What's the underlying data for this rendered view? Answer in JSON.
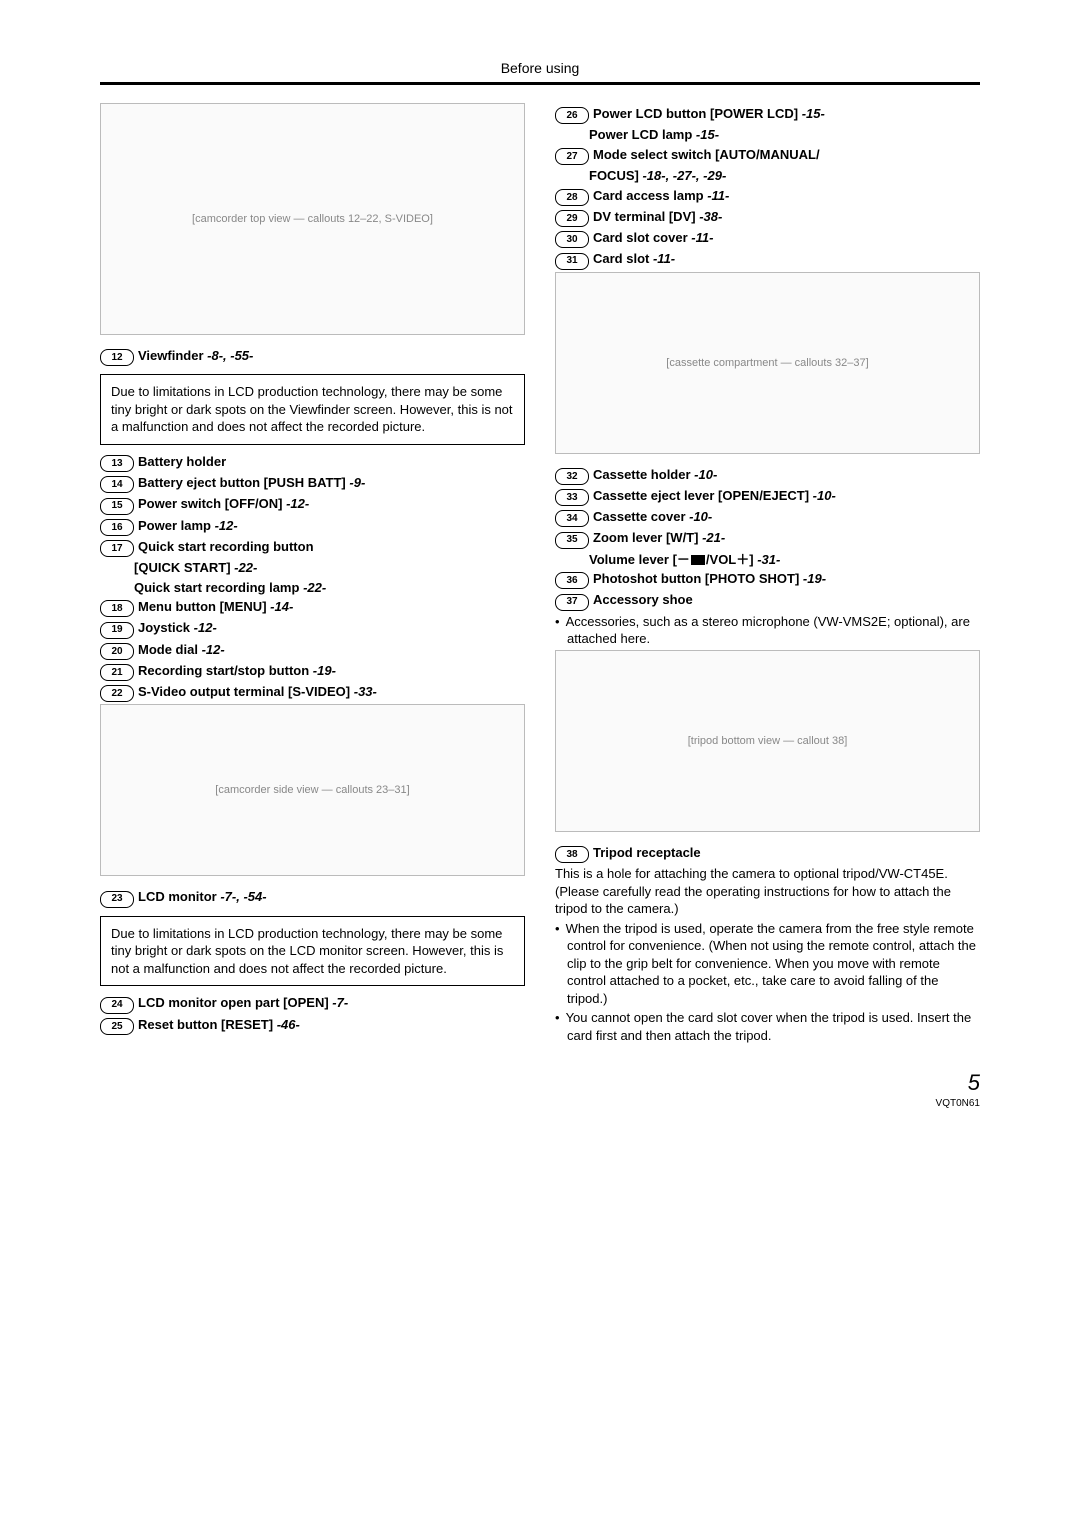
{
  "header": "Before using",
  "left": {
    "diagram1_label": "[camcorder top view — callouts 12–22, S-VIDEO]",
    "i12": {
      "n": "12",
      "name": "Viewfinder",
      "refs": "-8-, -55-"
    },
    "note1": "Due to limitations in LCD production technology, there may be some tiny bright or dark spots on the Viewfinder screen. However, this is not a malfunction and does not affect the recorded picture.",
    "i13": {
      "n": "13",
      "name": "Battery holder"
    },
    "i14": {
      "n": "14",
      "name": "Battery eject button [PUSH BATT]",
      "refs": "-9-"
    },
    "i15": {
      "n": "15",
      "name": "Power switch [OFF/ON]",
      "refs": "-12-"
    },
    "i16": {
      "n": "16",
      "name": "Power lamp",
      "refs": "-12-"
    },
    "i17a": {
      "n": "17",
      "name": "Quick start recording button"
    },
    "i17b": "[QUICK START]",
    "i17b_ref": "-22-",
    "i17c": "Quick start recording lamp",
    "i17c_ref": "-22-",
    "i18": {
      "n": "18",
      "name": "Menu button [MENU]",
      "refs": "-14-"
    },
    "i19": {
      "n": "19",
      "name": "Joystick",
      "refs": "-12-"
    },
    "i20": {
      "n": "20",
      "name": "Mode dial",
      "refs": "-12-"
    },
    "i21": {
      "n": "21",
      "name": "Recording start/stop button",
      "refs": "-19-"
    },
    "i22": {
      "n": "22",
      "name": "S-Video output terminal [S-VIDEO]",
      "refs": "-33-"
    },
    "diagram2_label": "[camcorder side view — callouts 23–31]",
    "i23": {
      "n": "23",
      "name": "LCD monitor",
      "refs": "-7-, -54-"
    },
    "note2": "Due to limitations in LCD production technology, there may be some tiny bright or dark spots on the LCD monitor screen. However, this is not a malfunction and does not affect the recorded picture.",
    "i24": {
      "n": "24",
      "name": "LCD monitor open part [OPEN]",
      "refs": "-7-"
    },
    "i25": {
      "n": "25",
      "name": "Reset button [RESET]",
      "refs": "-46-"
    }
  },
  "right": {
    "i26a": {
      "n": "26",
      "name": "Power LCD button [POWER LCD]",
      "refs": "-15-"
    },
    "i26b": "Power LCD lamp",
    "i26b_ref": "-15-",
    "i27a": {
      "n": "27",
      "name": "Mode select switch [AUTO/MANUAL/"
    },
    "i27b": "FOCUS]",
    "i27b_ref": "-18-, -27-, -29-",
    "i28": {
      "n": "28",
      "name": "Card access lamp",
      "refs": "-11-"
    },
    "i29": {
      "n": "29",
      "name": "DV terminal [DV]",
      "refs": "-38-"
    },
    "i30": {
      "n": "30",
      "name": "Card slot cover",
      "refs": "-11-"
    },
    "i31": {
      "n": "31",
      "name": "Card slot",
      "refs": "-11-"
    },
    "diagram3_label": "[cassette compartment — callouts 32–37]",
    "i32": {
      "n": "32",
      "name": "Cassette holder",
      "refs": "-10-"
    },
    "i33": {
      "n": "33",
      "name": "Cassette eject lever [OPEN/EJECT]",
      "refs": "-10-"
    },
    "i34": {
      "n": "34",
      "name": "Cassette cover",
      "refs": "-10-"
    },
    "i35a": {
      "n": "35",
      "name": "Zoom lever [W/T]",
      "refs": "-21-"
    },
    "i35b_pre": "Volume lever [－",
    "i35b_post": "/VOL＋]",
    "i35b_ref": "-31-",
    "i36": {
      "n": "36",
      "name": "Photoshot button [PHOTO SHOT]",
      "refs": "-19-"
    },
    "i37": {
      "n": "37",
      "name": "Accessory shoe"
    },
    "acc_note": "Accessories, such as a stereo microphone (VW-VMS2E; optional), are attached here.",
    "diagram4_label": "[tripod bottom view — callout 38]",
    "i38": {
      "n": "38",
      "name": "Tripod receptacle"
    },
    "tripod1": "This is a hole for attaching the camera to optional tripod/VW-CT45E. (Please carefully read the operating instructions for how to attach the tripod to the camera.)",
    "tripod2": "When the tripod is used, operate the camera from the free style remote control for convenience. (When not using the remote control, attach the clip to the grip belt for convenience. When you move with remote control attached to a pocket, etc., take care to avoid falling of the tripod.)",
    "tripod3": "You cannot open the card slot cover when the tripod is used. Insert the card first and then attach the tripod."
  },
  "page_number": "5",
  "footer_code": "VQT0N61"
}
